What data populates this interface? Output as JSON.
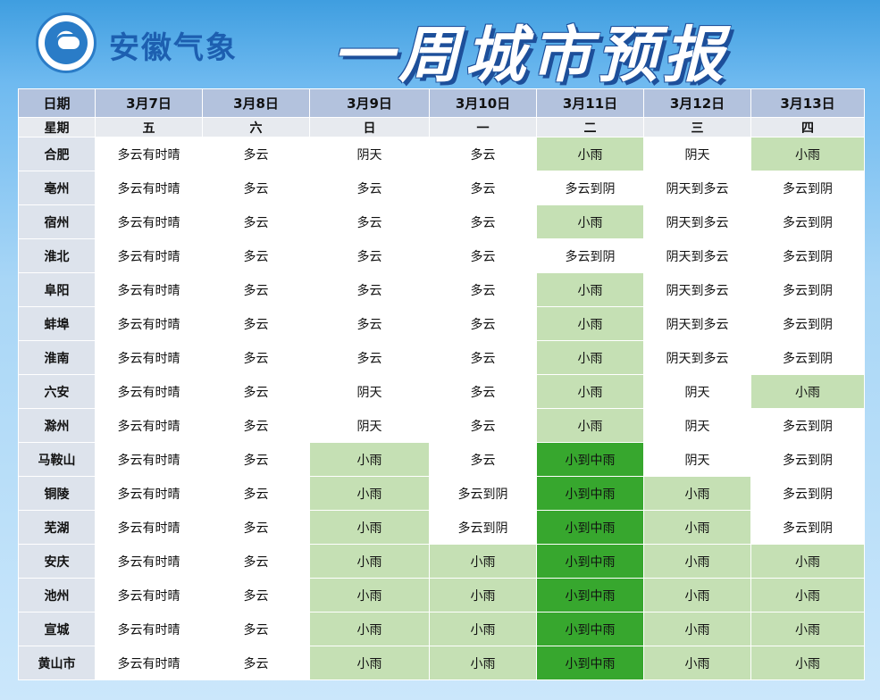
{
  "header": {
    "org_name": "安徽气象",
    "title": "一周城市预报",
    "logo_icon": "anhui-meteorological-bureau-logo"
  },
  "colors": {
    "light_rain_fill": "#c5e0b4",
    "moderate_rain_fill": "#37a72e",
    "header_fill": "#b3c2dd"
  },
  "table": {
    "date_label": "日期",
    "weekday_label": "星期",
    "dates": [
      "3月7日",
      "3月8日",
      "3月9日",
      "3月10日",
      "3月11日",
      "3月12日",
      "3月13日"
    ],
    "weekdays": [
      "五",
      "六",
      "日",
      "一",
      "二",
      "三",
      "四"
    ],
    "rows": [
      {
        "city": "合肥",
        "days": [
          "多云有时晴",
          "多云",
          "阴天",
          "多云",
          "小雨",
          "阴天",
          "小雨"
        ]
      },
      {
        "city": "亳州",
        "days": [
          "多云有时晴",
          "多云",
          "多云",
          "多云",
          "多云到阴",
          "阴天到多云",
          "多云到阴"
        ]
      },
      {
        "city": "宿州",
        "days": [
          "多云有时晴",
          "多云",
          "多云",
          "多云",
          "小雨",
          "阴天到多云",
          "多云到阴"
        ]
      },
      {
        "city": "淮北",
        "days": [
          "多云有时晴",
          "多云",
          "多云",
          "多云",
          "多云到阴",
          "阴天到多云",
          "多云到阴"
        ]
      },
      {
        "city": "阜阳",
        "days": [
          "多云有时晴",
          "多云",
          "多云",
          "多云",
          "小雨",
          "阴天到多云",
          "多云到阴"
        ]
      },
      {
        "city": "蚌埠",
        "days": [
          "多云有时晴",
          "多云",
          "多云",
          "多云",
          "小雨",
          "阴天到多云",
          "多云到阴"
        ]
      },
      {
        "city": "淮南",
        "days": [
          "多云有时晴",
          "多云",
          "多云",
          "多云",
          "小雨",
          "阴天到多云",
          "多云到阴"
        ]
      },
      {
        "city": "六安",
        "days": [
          "多云有时晴",
          "多云",
          "阴天",
          "多云",
          "小雨",
          "阴天",
          "小雨"
        ]
      },
      {
        "city": "滁州",
        "days": [
          "多云有时晴",
          "多云",
          "阴天",
          "多云",
          "小雨",
          "阴天",
          "多云到阴"
        ]
      },
      {
        "city": "马鞍山",
        "days": [
          "多云有时晴",
          "多云",
          "小雨",
          "多云",
          "小到中雨",
          "阴天",
          "多云到阴"
        ]
      },
      {
        "city": "铜陵",
        "days": [
          "多云有时晴",
          "多云",
          "小雨",
          "多云到阴",
          "小到中雨",
          "小雨",
          "多云到阴"
        ]
      },
      {
        "city": "芜湖",
        "days": [
          "多云有时晴",
          "多云",
          "小雨",
          "多云到阴",
          "小到中雨",
          "小雨",
          "多云到阴"
        ]
      },
      {
        "city": "安庆",
        "days": [
          "多云有时晴",
          "多云",
          "小雨",
          "小雨",
          "小到中雨",
          "小雨",
          "小雨"
        ]
      },
      {
        "city": "池州",
        "days": [
          "多云有时晴",
          "多云",
          "小雨",
          "小雨",
          "小到中雨",
          "小雨",
          "小雨"
        ]
      },
      {
        "city": "宣城",
        "days": [
          "多云有时晴",
          "多云",
          "小雨",
          "小雨",
          "小到中雨",
          "小雨",
          "小雨"
        ]
      },
      {
        "city": "黄山市",
        "days": [
          "多云有时晴",
          "多云",
          "小雨",
          "小雨",
          "小到中雨",
          "小雨",
          "小雨"
        ]
      }
    ]
  }
}
